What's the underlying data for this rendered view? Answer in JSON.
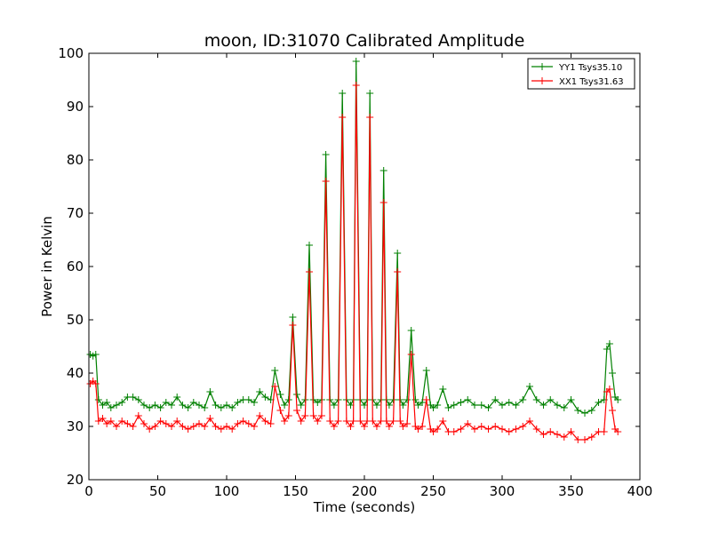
{
  "chart_data": {
    "type": "line",
    "title": "moon, ID:31070 Calibrated Amplitude",
    "xlabel": "Time (seconds)",
    "ylabel": "Power in Kelvin",
    "xlim": [
      0,
      400
    ],
    "ylim": [
      20,
      100
    ],
    "xticks": [
      0,
      50,
      100,
      150,
      200,
      250,
      300,
      350,
      400
    ],
    "yticks": [
      20,
      30,
      40,
      50,
      60,
      70,
      80,
      90,
      100
    ],
    "grid": false,
    "legend_position": "top-right",
    "marker": "+",
    "series": [
      {
        "name": "YY1 Tsys35.10",
        "color": "#008000",
        "x": [
          1,
          3,
          5,
          7,
          10,
          13,
          16,
          20,
          24,
          28,
          32,
          36,
          40,
          44,
          48,
          52,
          56,
          60,
          64,
          68,
          72,
          76,
          80,
          84,
          88,
          92,
          96,
          100,
          104,
          108,
          112,
          116,
          120,
          124,
          128,
          132,
          135,
          139,
          142,
          145,
          148,
          151,
          154,
          157,
          160,
          163,
          166,
          169,
          172,
          175,
          178,
          181,
          184,
          187,
          190,
          192,
          194,
          197,
          200,
          202,
          204,
          206,
          209,
          212,
          214,
          216,
          218,
          221,
          224,
          226,
          228,
          231,
          234,
          237,
          239,
          242,
          245,
          248,
          250,
          253,
          257,
          261,
          265,
          270,
          275,
          280,
          285,
          290,
          295,
          300,
          305,
          310,
          315,
          320,
          325,
          330,
          335,
          340,
          345,
          350,
          355,
          360,
          365,
          370,
          374,
          376,
          378,
          380,
          382,
          384
        ],
        "y": [
          43.5,
          43.2,
          43.5,
          35,
          34,
          34.5,
          33.5,
          34,
          34.5,
          35.5,
          35.5,
          35,
          34,
          33.5,
          34,
          33.5,
          34.5,
          34,
          35.5,
          34,
          33.5,
          34.5,
          34,
          33.5,
          36.5,
          34,
          33.5,
          34,
          33.5,
          34.5,
          35,
          35,
          34.5,
          36.5,
          35.5,
          35,
          40.5,
          36,
          34,
          35,
          50.5,
          36,
          34,
          35,
          64,
          35,
          34.5,
          35,
          81,
          35,
          34,
          35,
          92.5,
          35,
          34,
          35,
          98.5,
          35,
          34,
          35,
          92.5,
          35,
          34,
          35,
          78,
          35,
          34,
          35,
          62.5,
          35,
          34,
          35,
          48,
          35,
          34,
          34.5,
          40.5,
          34,
          33.5,
          34,
          37,
          33.5,
          34,
          34.5,
          35,
          34,
          34,
          33.5,
          35,
          34,
          34.5,
          34,
          35,
          37.5,
          35,
          34,
          35,
          34,
          33.5,
          35,
          33,
          32.5,
          33,
          34.5,
          35,
          44.5,
          45.5,
          40,
          35.5,
          35
        ]
      },
      {
        "name": "XX1 Tsys31.63",
        "color": "#ff0000",
        "x": [
          1,
          3,
          5,
          7,
          10,
          13,
          16,
          20,
          24,
          28,
          32,
          36,
          40,
          44,
          48,
          52,
          56,
          60,
          64,
          68,
          72,
          76,
          80,
          84,
          88,
          92,
          96,
          100,
          104,
          108,
          112,
          116,
          120,
          124,
          128,
          132,
          135,
          139,
          142,
          145,
          148,
          151,
          154,
          157,
          160,
          163,
          166,
          169,
          172,
          175,
          178,
          181,
          184,
          187,
          190,
          192,
          194,
          197,
          200,
          202,
          204,
          206,
          209,
          212,
          214,
          216,
          218,
          221,
          224,
          226,
          228,
          231,
          234,
          237,
          239,
          242,
          245,
          248,
          250,
          253,
          257,
          261,
          265,
          270,
          275,
          280,
          285,
          290,
          295,
          300,
          305,
          310,
          315,
          320,
          325,
          330,
          335,
          340,
          345,
          350,
          355,
          360,
          365,
          370,
          374,
          376,
          378,
          380,
          382,
          384
        ],
        "y": [
          38,
          38.5,
          38,
          31,
          31.5,
          30.5,
          31,
          30,
          31,
          30.5,
          30,
          32,
          30.5,
          29.5,
          30,
          31,
          30.5,
          30,
          31,
          30,
          29.5,
          30,
          30.5,
          30,
          31.5,
          30,
          29.5,
          30,
          29.5,
          30.5,
          31,
          30.5,
          30,
          32,
          31,
          30.5,
          37.5,
          33,
          31,
          32,
          49,
          33,
          31,
          32,
          59,
          32,
          31,
          32,
          76,
          31,
          30,
          31,
          88,
          31,
          30,
          31,
          94,
          31,
          30,
          31,
          88,
          31,
          30,
          31,
          72,
          31,
          30,
          31,
          59,
          31,
          30,
          30.5,
          43.5,
          30,
          29.5,
          30,
          35,
          29.5,
          29,
          29.5,
          31,
          29,
          29,
          29.5,
          30.5,
          29.5,
          30,
          29.5,
          30,
          29.5,
          29,
          29.5,
          30,
          31,
          29.5,
          28.5,
          29,
          28.5,
          28,
          29,
          27.5,
          27.5,
          28,
          29,
          29,
          36.5,
          37,
          33,
          29.5,
          29
        ]
      }
    ]
  }
}
